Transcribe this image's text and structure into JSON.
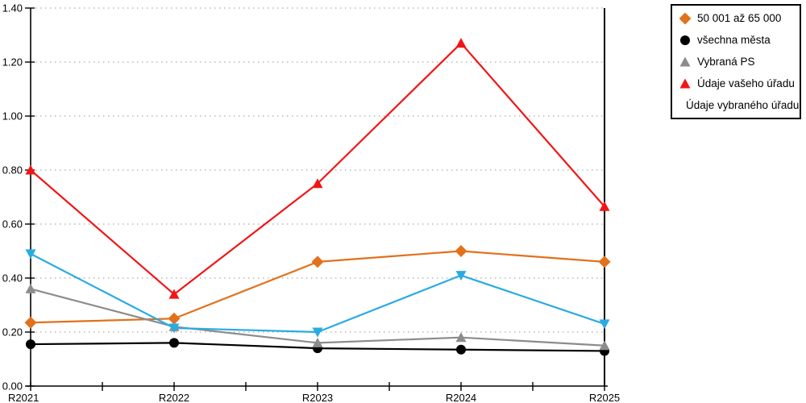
{
  "chart_data": {
    "type": "line",
    "title": "",
    "xlabel": "",
    "ylabel": "",
    "categories": [
      "R2021",
      "R2022",
      "R2023",
      "R2024",
      "R2025"
    ],
    "series": [
      {
        "name": "50 001 až 65 000",
        "color": "#E2711C",
        "marker": "diamond",
        "values": [
          0.235,
          0.25,
          0.46,
          0.5,
          0.46
        ]
      },
      {
        "name": "všechna města",
        "color": "#000000",
        "marker": "circle",
        "values": [
          0.155,
          0.16,
          0.14,
          0.135,
          0.13
        ]
      },
      {
        "name": "Vybraná PS",
        "color": "#8C8C8C",
        "marker": "triangle-up",
        "values": [
          0.36,
          0.22,
          0.16,
          0.18,
          0.15
        ]
      },
      {
        "name": "Údaje vašeho úřadu",
        "color": "#F21515",
        "marker": "triangle-up",
        "values": [
          0.8,
          0.34,
          0.75,
          1.27,
          0.665
        ]
      },
      {
        "name": "Údaje vybraného úřadu",
        "color": "#29ABE2",
        "marker": "triangle-down",
        "values": [
          0.49,
          0.215,
          0.2,
          0.41,
          0.23
        ]
      }
    ],
    "ylim": [
      0,
      1.4
    ],
    "ytick_step": 0.2,
    "ytick_labels": [
      "0.00",
      "0.20",
      "0.40",
      "0.60",
      "0.80",
      "1.00",
      "1.20",
      "1.40"
    ],
    "grid": "horizontal-dotted",
    "legend_position": "outside-top-right"
  },
  "colors": {
    "axis": "#000000",
    "grid": "#ABABAB",
    "background": "#FFFFFF",
    "legend_border": "#000000",
    "legend_background": "#FFFFFF"
  }
}
